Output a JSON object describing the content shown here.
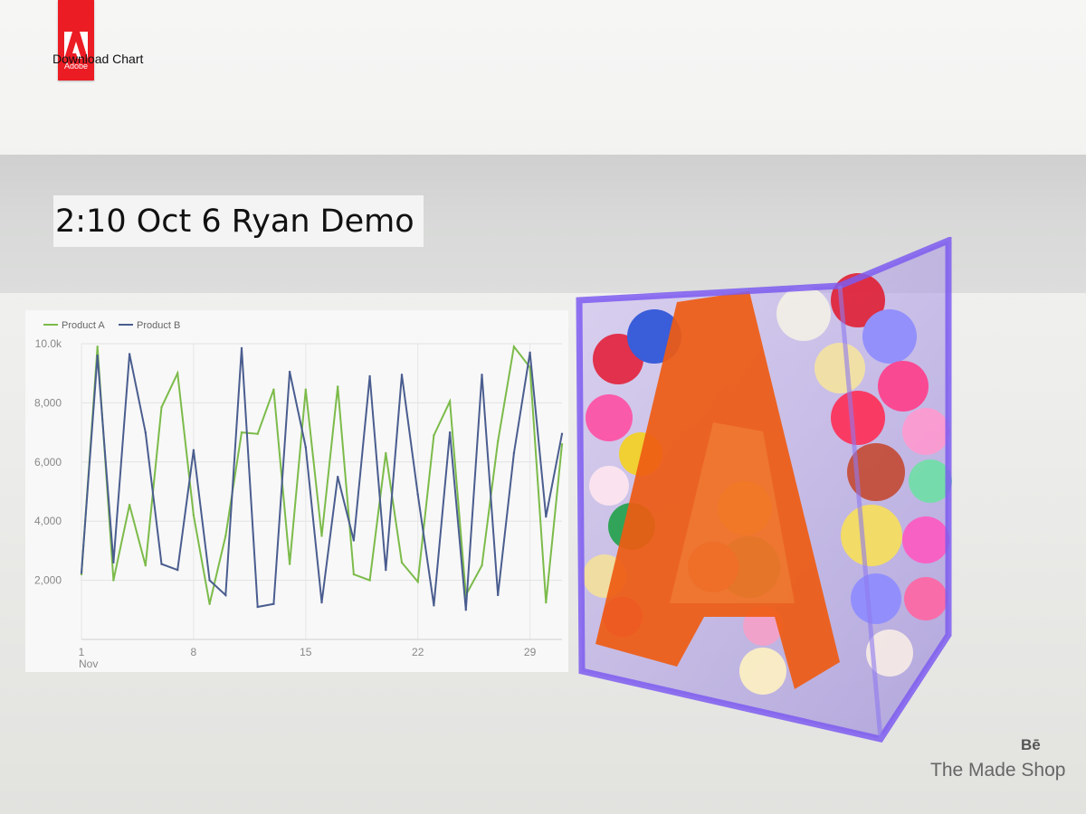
{
  "header": {
    "logo_word": "Adobe",
    "download_label": "Download Chart"
  },
  "title": "2:10 Oct 6 Ryan Demo",
  "credit": {
    "platform": "Bē",
    "studio": "The Made Shop"
  },
  "colors": {
    "adobe_red": "#ec1c24",
    "product_a": "#7cbb4a",
    "product_b": "#4a5d8f"
  },
  "chart_data": {
    "type": "line",
    "title": "",
    "xlabel": "",
    "ylabel": "",
    "x": [
      1,
      2,
      3,
      4,
      5,
      6,
      7,
      8,
      9,
      10,
      11,
      12,
      13,
      14,
      15,
      16,
      17,
      18,
      19,
      20,
      21,
      22,
      23,
      24,
      25,
      26,
      27,
      28,
      29,
      30,
      31
    ],
    "x_ticks": [
      1,
      8,
      15,
      22,
      29
    ],
    "x_tick_labels": [
      "1",
      "8",
      "15",
      "22",
      "29"
    ],
    "x_sublabel": "Nov",
    "ylim": [
      0,
      10000
    ],
    "y_ticks": [
      2000,
      4000,
      6000,
      8000,
      10000
    ],
    "y_tick_labels": [
      "2,000",
      "4,000",
      "6,000",
      "8,000",
      "10.0k"
    ],
    "grid": true,
    "legend": "top-left",
    "series": [
      {
        "name": "Product A",
        "color": "#7cbb4a",
        "values": [
          2200,
          9900,
          2000,
          4550,
          2500,
          7850,
          9000,
          4200,
          1200,
          3500,
          7000,
          6950,
          8450,
          2550,
          8450,
          3500,
          8550,
          2200,
          2000,
          6300,
          2600,
          1950,
          6900,
          8050,
          1500,
          2500,
          6700,
          9900,
          9200,
          1250,
          6600
        ]
      },
      {
        "name": "Product B",
        "color": "#4a5d8f",
        "values": [
          2250,
          9600,
          2600,
          9650,
          7000,
          2550,
          2350,
          6400,
          2000,
          1500,
          9850,
          1100,
          1200,
          9050,
          6500,
          1250,
          5500,
          3350,
          8900,
          2350,
          8950,
          4900,
          1150,
          7000,
          1000,
          8950,
          1500,
          6300,
          9700,
          4150,
          6950
        ]
      }
    ]
  }
}
